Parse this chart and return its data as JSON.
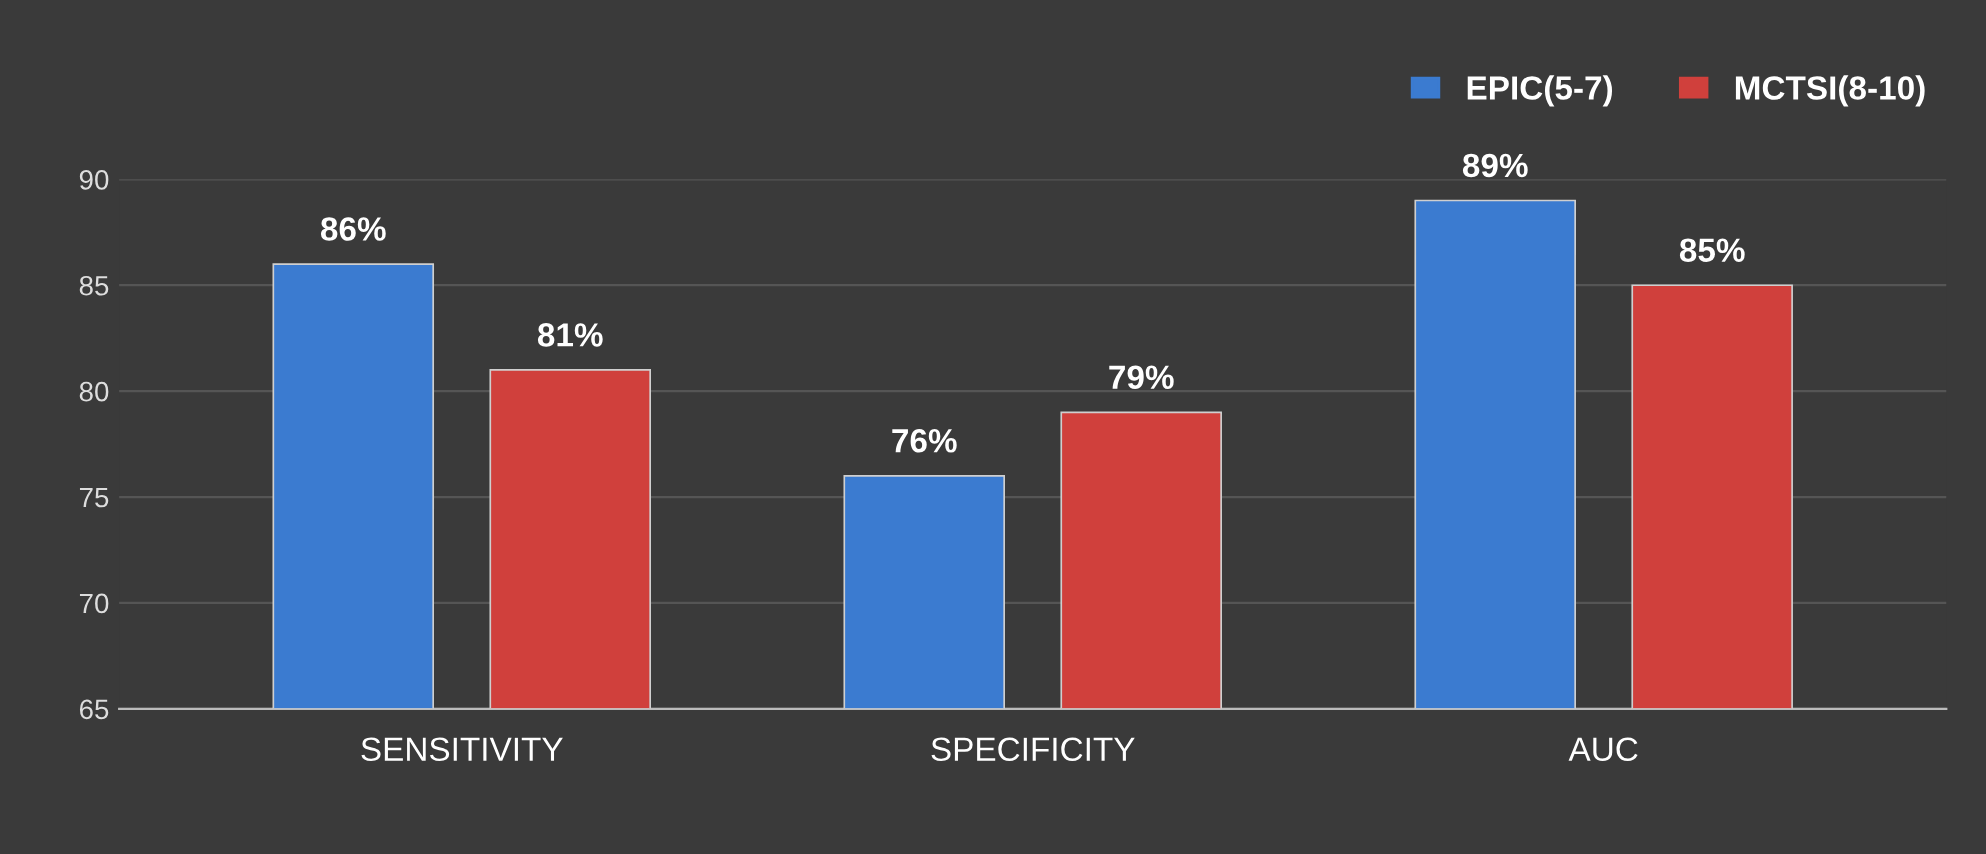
{
  "chart_data": {
    "type": "bar",
    "categories": [
      "SENSITIVITY",
      "SPECIFICITY",
      "AUC"
    ],
    "series": [
      {
        "name": "EPIC(5-7)",
        "color": "#3b7bd0",
        "values": [
          86,
          76,
          89
        ],
        "value_labels": [
          "86%",
          "76%",
          "89%"
        ]
      },
      {
        "name": "MCTSI(8-10)",
        "color": "#d0403c",
        "values": [
          81,
          79,
          85
        ],
        "value_labels": [
          "81%",
          "79%",
          "85%"
        ]
      }
    ],
    "ylim": [
      65,
      90
    ],
    "yticks": [
      65,
      70,
      75,
      80,
      85,
      90
    ],
    "grid": "y",
    "legend": "top right"
  }
}
